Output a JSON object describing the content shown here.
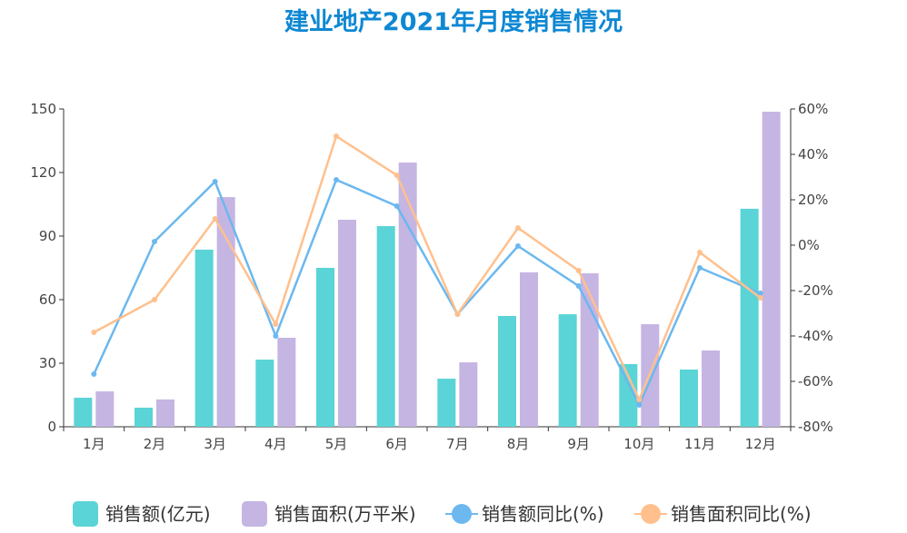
{
  "chart_data": {
    "type": "bar",
    "title": "建业地产2021年月度销售情况",
    "categories": [
      "1月",
      "2月",
      "3月",
      "4月",
      "5月",
      "6月",
      "7月",
      "8月",
      "9月",
      "10月",
      "11月",
      "12月"
    ],
    "left_axis": {
      "ylim": [
        0,
        150
      ],
      "ticks": [
        "0",
        "30",
        "60",
        "90",
        "120",
        "150"
      ],
      "tick_values": [
        0,
        30,
        60,
        90,
        120,
        150
      ]
    },
    "right_axis": {
      "ylim": [
        -80,
        60
      ],
      "ticks": [
        "-80%",
        "-60%",
        "-40%",
        "-20%",
        "0%",
        "20%",
        "40%",
        "60%"
      ],
      "tick_values": [
        -80,
        -60,
        -40,
        -20,
        0,
        20,
        40,
        60
      ]
    },
    "series": [
      {
        "name": "销售额(亿元)",
        "type": "bar",
        "axis": "left",
        "color": "#5ad4d6",
        "values": [
          13.7,
          9,
          83.6,
          31.7,
          75,
          94.7,
          22.7,
          52.3,
          53.1,
          29.6,
          27,
          102.9
        ]
      },
      {
        "name": "销售面积(万平米)",
        "type": "bar",
        "axis": "left",
        "color": "#c5b5e3",
        "values": [
          16.7,
          12.9,
          108.4,
          42,
          97.7,
          124.7,
          30.4,
          72.9,
          72.4,
          48.4,
          36,
          148.7
        ]
      },
      {
        "name": "销售额同比(%)",
        "type": "line",
        "axis": "right",
        "color": "#6cb8ef",
        "values": [
          -56.8,
          1.6,
          28,
          -40,
          28.8,
          17.2,
          -30.4,
          -0.4,
          -18,
          -70.4,
          -10,
          -21.2
        ]
      },
      {
        "name": "销售面积同比(%)",
        "type": "line",
        "axis": "right",
        "color": "#ffc08d",
        "values": [
          -38.4,
          -24,
          11.6,
          -34.8,
          48,
          30.8,
          -30.4,
          7.6,
          -11.2,
          -68,
          -3.2,
          -23.2
        ]
      }
    ],
    "legend_position": "bottom",
    "grid": false
  }
}
